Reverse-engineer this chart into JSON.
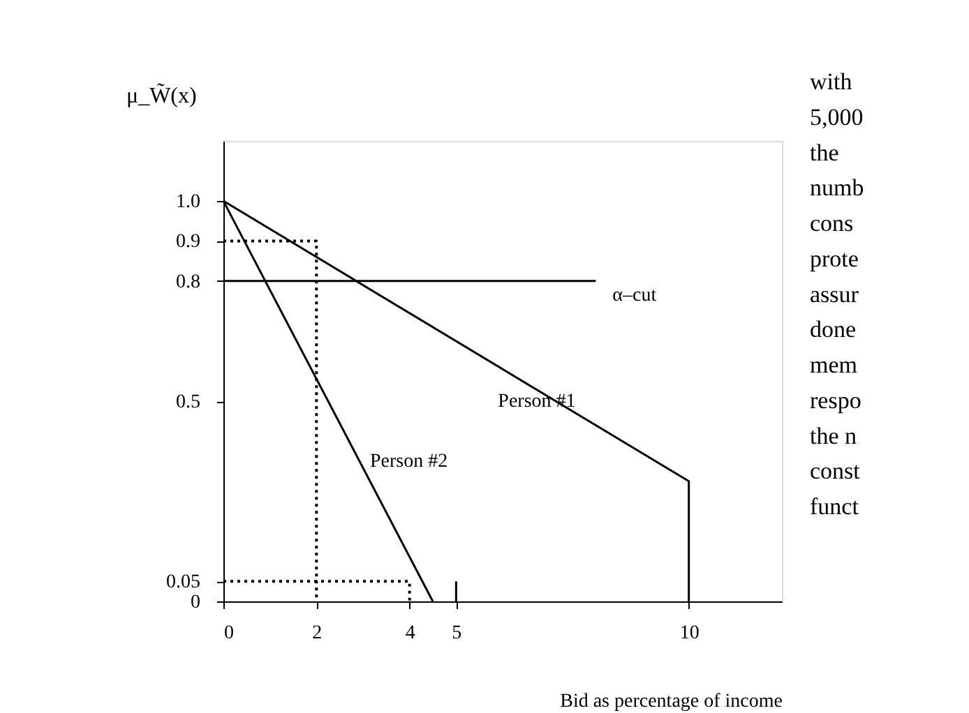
{
  "chart_data": {
    "type": "line",
    "xlabel": "Bid as percentage of income",
    "ylabel": "μ_W̃(x)",
    "xlim": [
      0,
      12
    ],
    "ylim": [
      0,
      1.15
    ],
    "xticks": [
      0,
      2,
      4,
      5,
      10
    ],
    "yticks": [
      {
        "value": 0,
        "label": "0"
      },
      0.05,
      0.5,
      0.8,
      0.9,
      {
        "value": 1.0,
        "label": "1.0"
      }
    ],
    "grid": false,
    "series": [
      {
        "name": "Person #1",
        "color": "#000000",
        "x": [
          0,
          10,
          10
        ],
        "values": [
          1.0,
          0.3,
          0
        ]
      },
      {
        "name": "Person #2",
        "color": "#000000",
        "x": [
          0,
          4.5
        ],
        "values": [
          1.0,
          0
        ]
      },
      {
        "name": "α–cut",
        "color": "#000000",
        "x": [
          0,
          8
        ],
        "values": [
          0.8,
          0.8
        ]
      },
      {
        "color": "#000000",
        "line_style": "dotted",
        "x": [
          0,
          2,
          2
        ],
        "values": [
          0.9,
          0.9,
          0
        ]
      },
      {
        "color": "#000000",
        "line_style": "dotted",
        "x": [
          0,
          4,
          4
        ],
        "values": [
          0.05,
          0.05,
          0
        ]
      },
      {
        "color": "#000000",
        "x": [
          5,
          5
        ],
        "values": [
          0,
          0.05
        ]
      }
    ],
    "annotations": [
      "with",
      "5,000",
      "the",
      "numb",
      "cons",
      "prote",
      "assur",
      "done",
      "mem",
      "respo",
      "the n",
      "const",
      "funct"
    ]
  }
}
